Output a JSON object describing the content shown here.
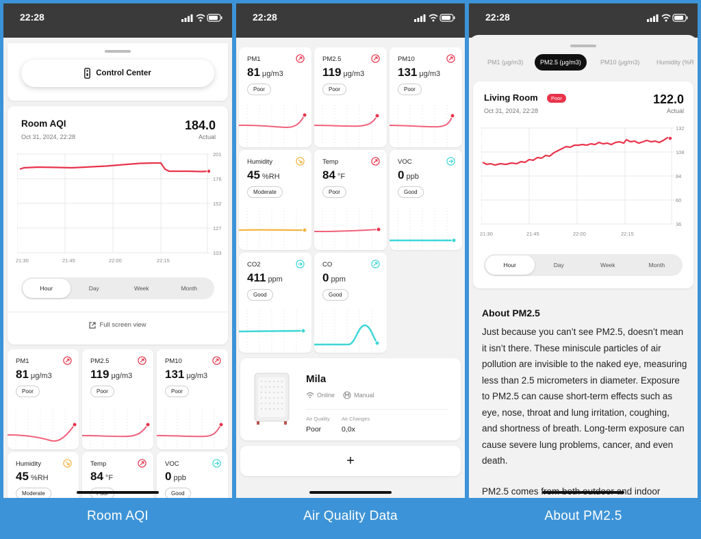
{
  "status_time": "22:28",
  "captions": [
    "Room AQI",
    "Air Quality Data",
    "About PM2.5"
  ],
  "colors": {
    "red": "#e8334a",
    "red_line": "#f0607a",
    "orange": "#f2b441",
    "teal": "#3ed6d6",
    "background": "#3d93d7"
  },
  "control_center": {
    "label": "Control Center",
    "icon": "remote-icon"
  },
  "room_aqi": {
    "title": "Room AQI",
    "date": "Oct 31, 2024, 22:28",
    "value": "184.0",
    "actual_label": "Actual",
    "y_ticks": [
      "201",
      "176",
      "152",
      "127",
      "103"
    ],
    "x_ticks": [
      "21:30",
      "21:45",
      "22:00",
      "22:15"
    ],
    "segments": [
      "Hour",
      "Day",
      "Week",
      "Month"
    ],
    "active_segment": "Hour",
    "full_screen_label": "Full screen view"
  },
  "metrics": [
    {
      "label": "PM1",
      "value": "81",
      "unit": "μg/m3",
      "badge": "Poor",
      "trend": "up",
      "color": "red"
    },
    {
      "label": "PM2.5",
      "value": "119",
      "unit": "μg/m3",
      "badge": "Poor",
      "trend": "up",
      "color": "red"
    },
    {
      "label": "PM10",
      "value": "131",
      "unit": "μg/m3",
      "badge": "Poor",
      "trend": "up",
      "color": "red"
    },
    {
      "label": "Humidity",
      "value": "45",
      "unit": "%RH",
      "badge": "Moderate",
      "trend": "down",
      "color": "orange"
    },
    {
      "label": "Temp",
      "value": "84",
      "unit": "°F",
      "badge": "Poor",
      "trend": "up",
      "color": "red"
    },
    {
      "label": "VOC",
      "value": "0",
      "unit": "ppb",
      "badge": "Good",
      "trend": "flat",
      "color": "teal"
    },
    {
      "label": "CO2",
      "value": "411",
      "unit": "ppm",
      "badge": "Good",
      "trend": "flat",
      "color": "teal"
    },
    {
      "label": "CO",
      "value": "0",
      "unit": "ppm",
      "badge": "Good",
      "trend": "up",
      "color": "teal"
    }
  ],
  "device": {
    "name": "Mila",
    "online_label": "Online",
    "mode_label": "Manual",
    "air_quality_label": "Air Quality",
    "air_quality_value": "Poor",
    "air_changes_label": "Air Changes",
    "air_changes_value": "0,0x",
    "add_label": "+"
  },
  "pm25": {
    "tabs": [
      "PM1 (μg/m3)",
      "PM2.5 (μg/m3)",
      "PM10 (μg/m3)",
      "Humidity (%R"
    ],
    "active_tab": "PM2.5 (μg/m3)",
    "room": "Living Room",
    "badge": "Poor",
    "date": "Oct 31, 2024, 22:28",
    "value": "122.0",
    "actual_label": "Actual",
    "y_ticks": [
      "132",
      "108",
      "84",
      "60",
      "36"
    ],
    "x_ticks": [
      "21:30",
      "21:45",
      "22:00",
      "22:15"
    ],
    "segments": [
      "Hour",
      "Day",
      "Week",
      "Month"
    ],
    "about_title": "About PM2.5",
    "about_text": "Just because you can’t see PM2.5, doesn’t mean it isn’t there. These miniscule particles of air pollution are invisible to the naked eye, measuring less than 2.5 micrometers in diameter. Exposure to PM2.5 can cause short-term effects such as eye, nose, throat and lung irritation, coughing, and shortness of breath. Long-term exposure can cause severe lung problems, cancer, and even death.",
    "about_text_2": "PM2.5 comes from both outdoor and indoor"
  }
}
